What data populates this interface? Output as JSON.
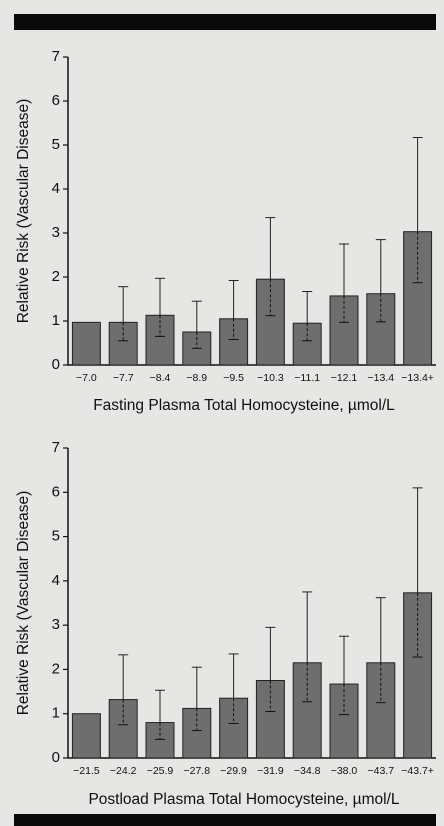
{
  "chart_data": [
    {
      "type": "bar",
      "x_label": "Fasting Plasma Total Homocysteine, µmol/L",
      "y_label": "Relative Risk (Vascular Disease)",
      "categories": [
        "−7.0",
        "−7.7",
        "−8.4",
        "−8.9",
        "−9.5",
        "−10.3",
        "−11.1",
        "−12.1",
        "−13.4",
        "−13.4+"
      ],
      "values": [
        0.97,
        0.97,
        1.13,
        0.75,
        1.05,
        1.95,
        0.95,
        1.57,
        1.62,
        3.03
      ],
      "ci_low": [
        null,
        0.55,
        0.65,
        0.38,
        0.58,
        1.12,
        0.55,
        0.97,
        0.98,
        1.87
      ],
      "ci_high": [
        null,
        1.78,
        1.97,
        1.45,
        1.92,
        3.35,
        1.67,
        2.75,
        2.85,
        5.17
      ],
      "color": "#6e6e6e",
      "ylim": [
        0,
        7
      ],
      "yticks": [
        0,
        1,
        2,
        3,
        4,
        5,
        6,
        7
      ]
    },
    {
      "type": "bar",
      "x_label": "Postload Plasma Total Homocysteine, µmol/L",
      "y_label": "Relative Risk (Vascular Disease)",
      "categories": [
        "−21.5",
        "−24.2",
        "−25.9",
        "−27.8",
        "−29.9",
        "−31.9",
        "−34.8",
        "−38.0",
        "−43.7",
        "−43.7+"
      ],
      "values": [
        1.0,
        1.32,
        0.8,
        1.12,
        1.35,
        1.75,
        2.15,
        1.67,
        2.15,
        3.73
      ],
      "ci_low": [
        null,
        0.75,
        0.42,
        0.62,
        0.78,
        1.05,
        1.27,
        0.98,
        1.25,
        2.28
      ],
      "ci_high": [
        null,
        2.33,
        1.53,
        2.05,
        2.35,
        2.95,
        3.75,
        2.75,
        3.62,
        6.1
      ],
      "color": "#6e6e6e",
      "ylim": [
        0,
        7
      ],
      "yticks": [
        0,
        1,
        2,
        3,
        4,
        5,
        6,
        7
      ]
    }
  ]
}
